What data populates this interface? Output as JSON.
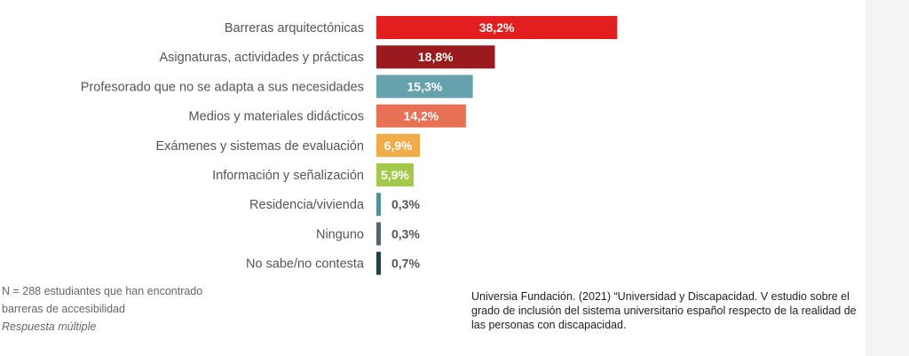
{
  "chart_data": {
    "type": "bar",
    "orientation": "horizontal",
    "categories": [
      "Barreras arquitectónicas",
      "Asignaturas, actividades y prácticas",
      "Profesorado que no se adapta a sus necesidades",
      "Medios y materiales didácticos",
      "Exámenes y sistemas de evaluación",
      "Información y señalización",
      "Residencia/vivienda",
      "Ninguno",
      "No sabe/no contesta"
    ],
    "values": [
      38.2,
      18.8,
      15.3,
      14.2,
      6.9,
      5.9,
      0.3,
      0.3,
      0.7
    ],
    "labels": [
      "38,2%",
      "18,8%",
      "15,3%",
      "14,2%",
      "6,9%",
      "5,9%",
      "0,3%",
      "0,3%",
      "0,7%"
    ],
    "colors": [
      "#e31e1e",
      "#9b1a1e",
      "#65a2ae",
      "#e87055",
      "#f0ac48",
      "#a3c94a",
      "#4e9498",
      "#556570",
      "#1f3f4e"
    ],
    "unit": "%",
    "grid": false
  },
  "note": {
    "line1": "N = 288 estudiantes que han encontrado",
    "line2": "barreras de accesibilidad",
    "line3": "Respuesta múltiple"
  },
  "source": "Universia Fundación. (2021) “Universidad y Discapacidad. V estudio sobre el grado de inclusión del sistema universitario español respecto de la realidad de las personas con discapacidad."
}
